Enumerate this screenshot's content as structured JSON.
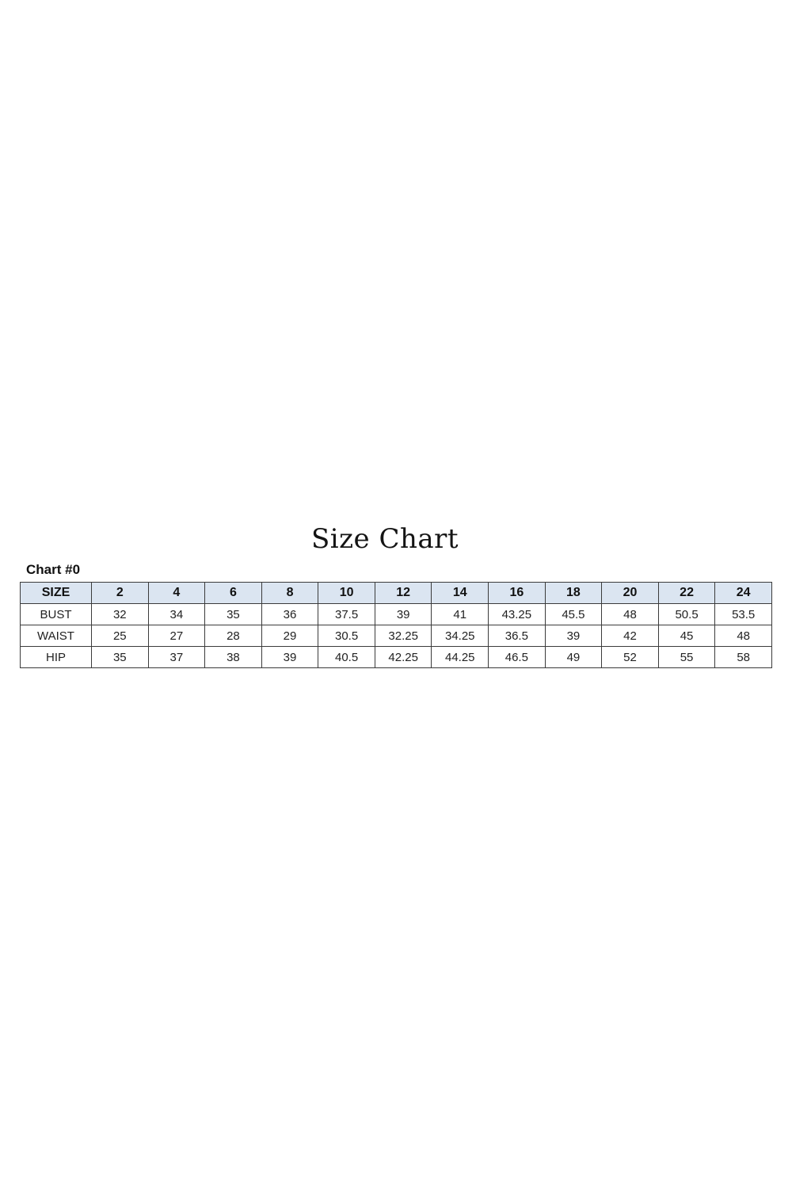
{
  "page": {
    "title": "Size Chart",
    "chart_label": "Chart #0"
  },
  "chart_data": {
    "type": "table",
    "title": "Size Chart",
    "subtitle": "Chart #0",
    "columns": [
      "SIZE",
      "2",
      "4",
      "6",
      "8",
      "10",
      "12",
      "14",
      "16",
      "18",
      "20",
      "22",
      "24"
    ],
    "rows": [
      {
        "label": "BUST",
        "values": [
          "32",
          "34",
          "35",
          "36",
          "37.5",
          "39",
          "41",
          "43.25",
          "45.5",
          "48",
          "50.5",
          "53.5"
        ]
      },
      {
        "label": "WAIST",
        "values": [
          "25",
          "27",
          "28",
          "29",
          "30.5",
          "32.25",
          "34.25",
          "36.5",
          "39",
          "42",
          "45",
          "48"
        ]
      },
      {
        "label": "HIP",
        "values": [
          "35",
          "37",
          "38",
          "39",
          "40.5",
          "42.25",
          "44.25",
          "46.5",
          "49",
          "52",
          "55",
          "58"
        ]
      }
    ],
    "colors": {
      "header_bg": "#dbe5f1",
      "border": "#3b3b3b",
      "text": "#1c1c1c"
    },
    "layout": {
      "header_row_shaded": true,
      "grid": "full",
      "units": "inches (implied, not shown)"
    }
  }
}
